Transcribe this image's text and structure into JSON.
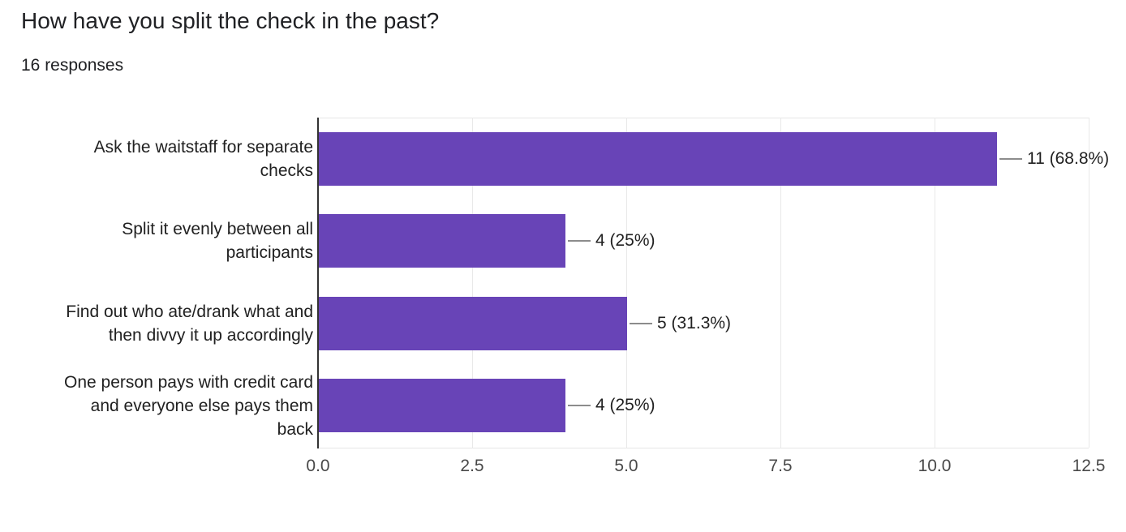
{
  "header": {
    "title": "How have you split the check in the past?",
    "subtitle": "16 responses"
  },
  "chart_data": {
    "type": "bar",
    "orientation": "horizontal",
    "title": "How have you split the check in the past?",
    "subtitle": "16 responses",
    "total_responses": 16,
    "categories": [
      "Ask the waitstaff for separate\nchecks",
      "Split it evenly between all\nparticipants",
      "Find out who ate/drank what and\nthen divvy it up accordingly",
      "One person pays with credit card\nand everyone else pays them\nback"
    ],
    "values": [
      11,
      4,
      5,
      4
    ],
    "percentages": [
      68.8,
      25,
      31.3,
      25
    ],
    "annotations": [
      "11 (68.8%)",
      "4 (25%)",
      "5 (31.3%)",
      "4 (25%)"
    ],
    "x_ticks": [
      "0.0",
      "2.5",
      "5.0",
      "7.5",
      "10.0",
      "12.5"
    ],
    "xlim": [
      0,
      12.5
    ],
    "grid": true,
    "legend_position": "none",
    "bar_color": "#6844b7",
    "axis_line_color": "#333333",
    "gridline_color": "#e9e9e9",
    "callout_color": "#8c8c8c"
  }
}
